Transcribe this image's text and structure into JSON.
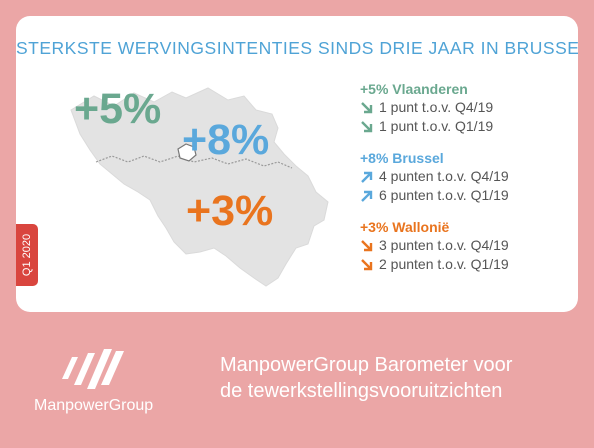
{
  "title": "STERKSTE WERVINGSINTENTIES SINDS DRIE JAAR IN BRUSSEL",
  "quarter_label": "Q1 2020",
  "map": {
    "vlaanderen_value": "+5%",
    "brussel_value": "+8%",
    "wallonie_value": "+3%"
  },
  "legend": [
    {
      "heading": "+5% Vlaanderen",
      "color": "#6aa88f",
      "rows": [
        {
          "text": "1 punt t.o.v. Q4/19",
          "direction": "down"
        },
        {
          "text": "1 punt t.o.v. Q1/19",
          "direction": "down"
        }
      ]
    },
    {
      "heading": "+8% Brussel",
      "color": "#5aa8dc",
      "rows": [
        {
          "text": "4 punten t.o.v. Q4/19",
          "direction": "up"
        },
        {
          "text": "6 punten t.o.v. Q1/19",
          "direction": "up"
        }
      ]
    },
    {
      "heading": "+3% Wallonië",
      "color": "#e9741e",
      "rows": [
        {
          "text": "3 punten t.o.v. Q4/19",
          "direction": "down"
        },
        {
          "text": "2 punten t.o.v. Q1/19",
          "direction": "down"
        }
      ]
    }
  ],
  "footer": {
    "brand": "ManpowerGroup",
    "barometer_line1": "ManpowerGroup Barometer voor",
    "barometer_line2": "de tewerkstellingsvooruitzichten"
  },
  "colors": {
    "background": "#eba6a6",
    "title": "#4fa3d6",
    "map_fill": "#e3e3e3",
    "quarter_tab": "#d9453e"
  }
}
